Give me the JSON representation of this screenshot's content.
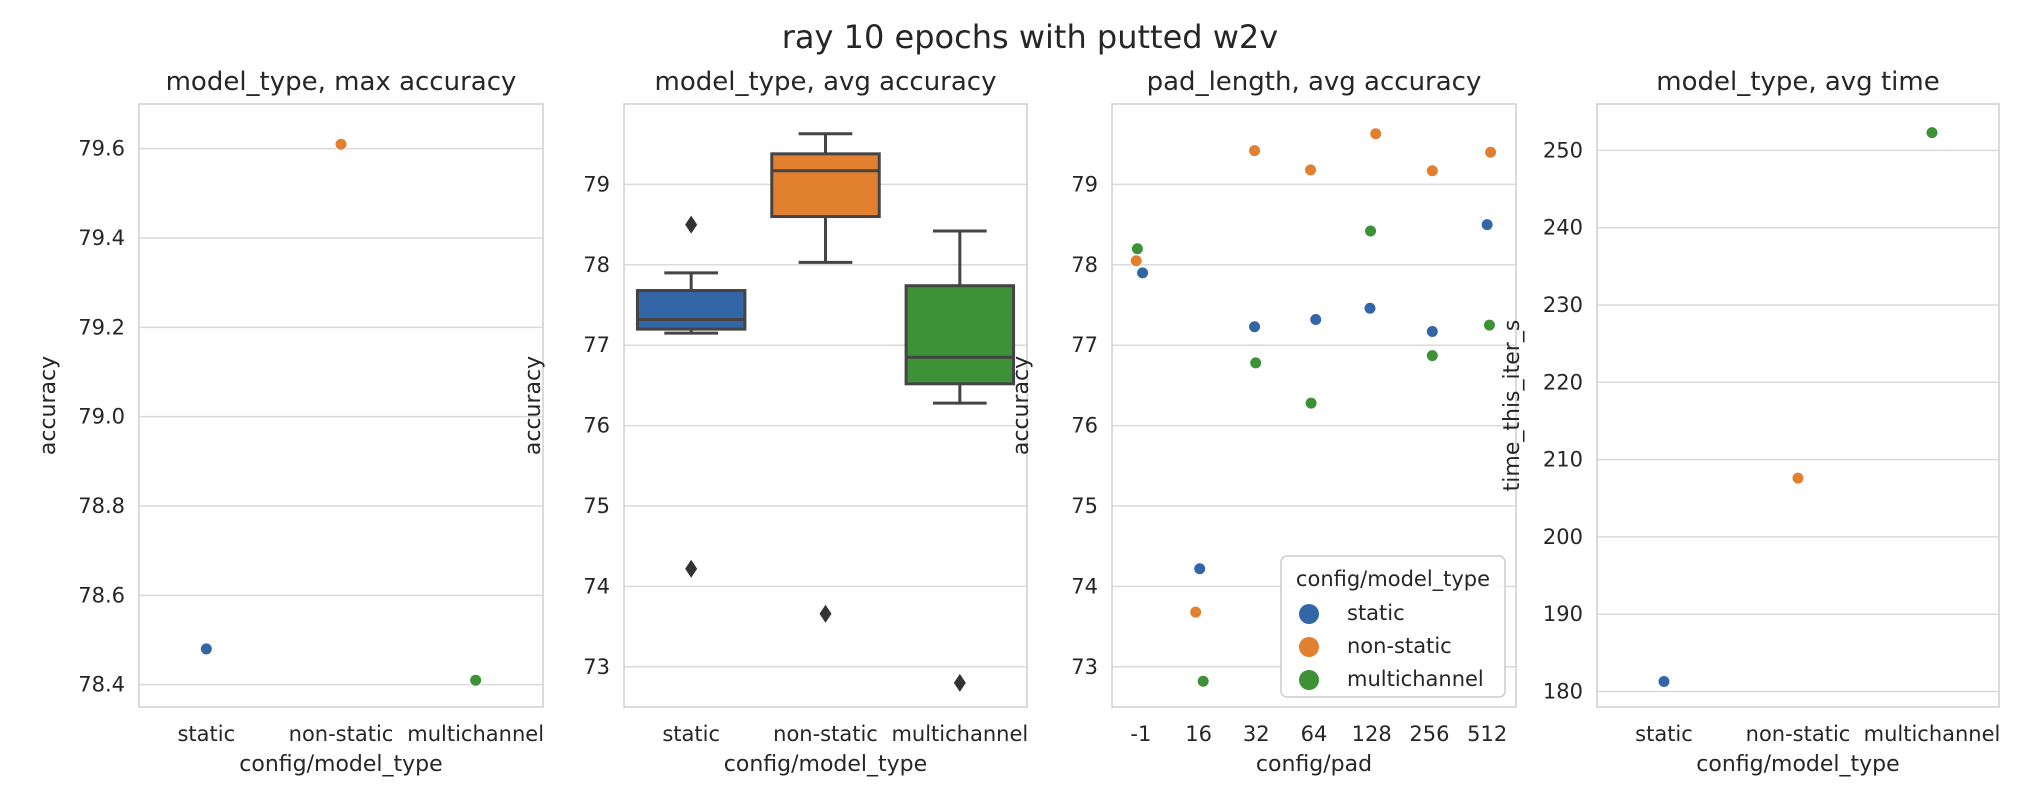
{
  "figure": {
    "suptitle": "ray 10 epochs with putted w2v"
  },
  "colors": {
    "static": "#3266a6",
    "non-static": "#e1802f",
    "multichannel": "#3d9238",
    "outlier": "#333333",
    "grid": "#dadada",
    "spine": "#cfcfcf"
  },
  "legend": {
    "title": "config/model_type",
    "placement": "lower-right",
    "entries": [
      {
        "label": "static",
        "color": "#3266a6"
      },
      {
        "label": "non-static",
        "color": "#e1802f"
      },
      {
        "label": "multichannel",
        "color": "#3d9238"
      }
    ]
  },
  "chart_data": [
    {
      "type": "scatter",
      "title": "model_type, max accuracy",
      "xlabel": "config/model_type",
      "ylabel": "accuracy",
      "categories": [
        "static",
        "non-static",
        "multichannel"
      ],
      "ylim": [
        78.35,
        79.7
      ],
      "yticks": [
        78.4,
        78.6,
        78.8,
        79.0,
        79.2,
        79.4,
        79.6
      ],
      "ytick_labels": [
        "78.4",
        "78.6",
        "78.8",
        "79.0",
        "79.2",
        "79.4",
        "79.6"
      ],
      "grid": true,
      "points": [
        {
          "category": "static",
          "y": 78.48,
          "color": "#3266a6"
        },
        {
          "category": "non-static",
          "y": 79.61,
          "color": "#e1802f"
        },
        {
          "category": "multichannel",
          "y": 78.41,
          "color": "#3d9238"
        }
      ]
    },
    {
      "type": "box",
      "title": "model_type, avg accuracy",
      "xlabel": "config/model_type",
      "ylabel": "accuracy",
      "categories": [
        "static",
        "non-static",
        "multichannel"
      ],
      "ylim": [
        72.5,
        80.0
      ],
      "yticks": [
        73,
        74,
        75,
        76,
        77,
        78,
        79
      ],
      "ytick_labels": [
        "73",
        "74",
        "75",
        "76",
        "77",
        "78",
        "79"
      ],
      "grid": true,
      "boxes": [
        {
          "category": "static",
          "whislo": 77.15,
          "q1": 77.2,
          "med": 77.32,
          "q3": 77.68,
          "whishi": 77.9,
          "fliers": [
            78.5,
            74.22
          ],
          "color": "#3266a6"
        },
        {
          "category": "non-static",
          "whislo": 78.03,
          "q1": 78.6,
          "med": 79.17,
          "q3": 79.38,
          "whishi": 79.63,
          "fliers": [
            73.66
          ],
          "color": "#e1802f"
        },
        {
          "category": "multichannel",
          "whislo": 76.28,
          "q1": 76.52,
          "med": 76.85,
          "q3": 77.74,
          "whishi": 78.42,
          "fliers": [
            72.8
          ],
          "color": "#3d9238"
        }
      ]
    },
    {
      "type": "scatter",
      "title": "pad_length, avg accuracy",
      "xlabel": "config/pad",
      "ylabel": "accuracy",
      "categories": [
        "-1",
        "16",
        "32",
        "64",
        "128",
        "256",
        "512"
      ],
      "ylim": [
        72.5,
        80.0
      ],
      "yticks": [
        73,
        74,
        75,
        76,
        77,
        78,
        79
      ],
      "ytick_labels": [
        "73",
        "74",
        "75",
        "76",
        "77",
        "78",
        "79"
      ],
      "grid": true,
      "series": [
        {
          "name": "static",
          "color": "#3266a6",
          "values": [
            77.9,
            74.22,
            77.23,
            77.32,
            77.46,
            77.17,
            78.5
          ]
        },
        {
          "name": "non-static",
          "color": "#e1802f",
          "values": [
            78.05,
            73.68,
            79.42,
            79.18,
            79.63,
            79.17,
            79.4
          ]
        },
        {
          "name": "multichannel",
          "color": "#3d9238",
          "values": [
            78.2,
            72.82,
            76.78,
            76.28,
            78.42,
            76.87,
            77.25
          ]
        }
      ],
      "jitter": {
        "static": [
          0.03,
          0.02,
          -0.03,
          0.03,
          -0.03,
          0.05,
          0.0
        ],
        "non-static": [
          -0.08,
          -0.05,
          -0.03,
          -0.06,
          0.07,
          0.05,
          0.06
        ],
        "multichannel": [
          -0.06,
          0.08,
          -0.01,
          -0.05,
          -0.02,
          0.05,
          0.04
        ]
      }
    },
    {
      "type": "scatter",
      "title": "model_type, avg time",
      "xlabel": "config/model_type",
      "ylabel": "time_this_iter_s",
      "categories": [
        "static",
        "non-static",
        "multichannel"
      ],
      "ylim": [
        178,
        256
      ],
      "yticks": [
        180,
        190,
        200,
        210,
        220,
        230,
        240,
        250
      ],
      "ytick_labels": [
        "180",
        "190",
        "200",
        "210",
        "220",
        "230",
        "240",
        "250"
      ],
      "grid": true,
      "points": [
        {
          "category": "static",
          "y": 181.3,
          "color": "#3266a6"
        },
        {
          "category": "non-static",
          "y": 207.6,
          "color": "#e1802f"
        },
        {
          "category": "multichannel",
          "y": 252.3,
          "color": "#3d9238"
        }
      ]
    }
  ]
}
